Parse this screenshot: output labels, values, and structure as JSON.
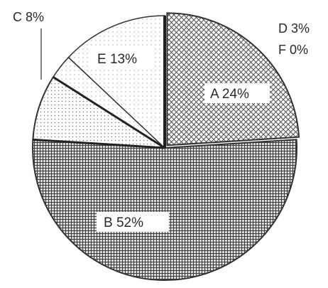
{
  "chart_data": {
    "type": "pie",
    "slices": [
      {
        "name": "A",
        "value": 24,
        "label": "A  24%",
        "pattern": "crosshatch"
      },
      {
        "name": "B",
        "value": 52,
        "label": "B  52%",
        "pattern": "grid"
      },
      {
        "name": "C",
        "value": 8,
        "label": "C  8%",
        "pattern": "dots"
      },
      {
        "name": "D",
        "value": 3,
        "label": "D 3%",
        "pattern": "light-dots"
      },
      {
        "name": "E",
        "value": 13,
        "label": "E  13%",
        "pattern": "light-dots"
      },
      {
        "name": "F",
        "value": 0,
        "label": "F 0%",
        "pattern": "none"
      }
    ],
    "legend": "none",
    "title": ""
  }
}
